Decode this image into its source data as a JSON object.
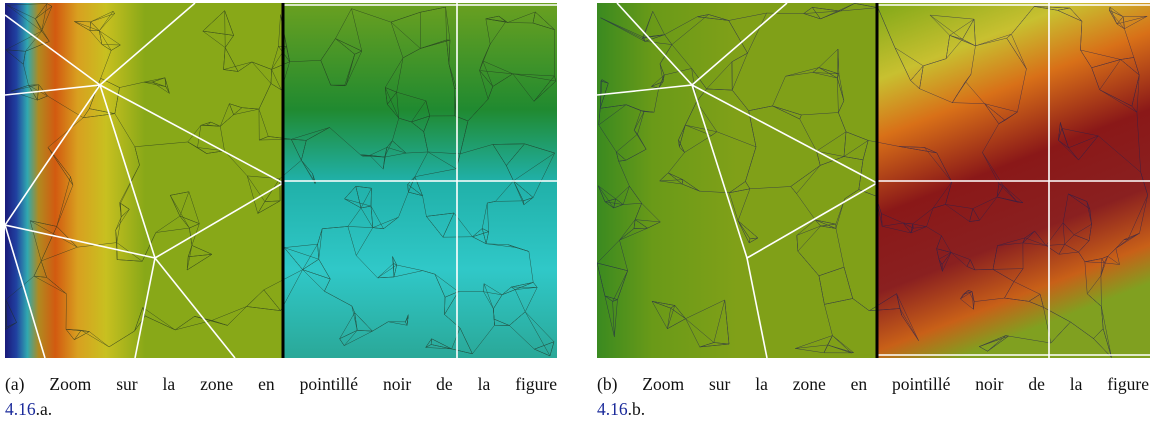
{
  "figures": [
    {
      "label": "(a)",
      "caption": "Zoom sur la zone en pointillé noir de la figure",
      "ref": "4.16",
      "suffix": ".a."
    },
    {
      "label": "(b)",
      "caption": "Zoom sur la zone en pointillé noir de la figure",
      "ref": "4.16",
      "suffix": ".b."
    }
  ]
}
